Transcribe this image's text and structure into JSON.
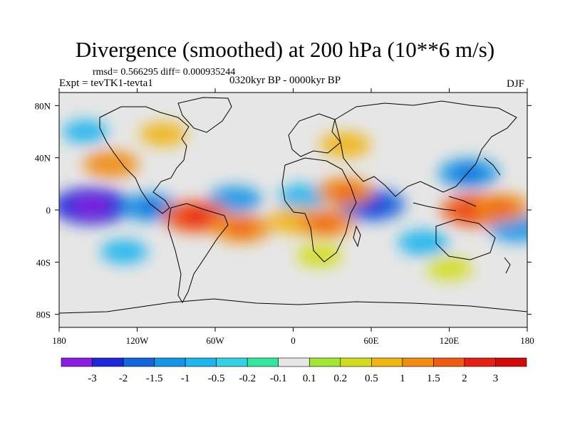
{
  "figure": {
    "title": "Divergence (smoothed) at 200 hPa (10**6 m/s)",
    "stats": "rmsd= 0.566295 diff= 0.000935244",
    "experiment": "Expt = tevTK1-tevta1",
    "period": "0320kyr BP - 0000kyr BP",
    "season": "DJF"
  },
  "chart_data": {
    "type": "heatmap",
    "title": "Divergence (smoothed) at 200 hPa (10**6 m/s)",
    "projection": "cylindrical equidistant",
    "xlabel": "",
    "ylabel": "",
    "xlim": [
      -180,
      180
    ],
    "ylim": [
      -90,
      90
    ],
    "x_ticks": [
      {
        "value": -180,
        "label": "180"
      },
      {
        "value": -120,
        "label": "120W"
      },
      {
        "value": -60,
        "label": "60W"
      },
      {
        "value": 0,
        "label": "0"
      },
      {
        "value": 60,
        "label": "60E"
      },
      {
        "value": 120,
        "label": "120E"
      },
      {
        "value": 180,
        "label": "180"
      }
    ],
    "y_ticks": [
      {
        "value": 80,
        "label": "80N"
      },
      {
        "value": 40,
        "label": "40N"
      },
      {
        "value": 0,
        "label": "0"
      },
      {
        "value": -40,
        "label": "40S"
      },
      {
        "value": -80,
        "label": "80S"
      }
    ],
    "levels": [
      "-3",
      "-2",
      "-1.5",
      "-1",
      "-0.5",
      "-0.2",
      "-0.1",
      "0.1",
      "0.2",
      "0.5",
      "1",
      "1.5",
      "2",
      "3"
    ],
    "level_colors": [
      "#8a1ee0",
      "#1e28d8",
      "#1464dc",
      "#1496e6",
      "#1eb4ee",
      "#32d2e0",
      "#32e6a0",
      "#e6e6e6",
      "#a0e632",
      "#d2dc1e",
      "#f0b414",
      "#f08c14",
      "#f05a14",
      "#e61e14",
      "#d20a0a"
    ],
    "anomalies": [
      {
        "lon": -155,
        "lat": 3,
        "value": -2.4
      },
      {
        "lon": -110,
        "lat": 2,
        "value": -1.2
      },
      {
        "lon": -45,
        "lat": 8,
        "value": -1.0
      },
      {
        "lon": 8,
        "lat": 10,
        "value": -0.8
      },
      {
        "lon": 60,
        "lat": 4,
        "value": -1.8
      },
      {
        "lon": 135,
        "lat": 28,
        "value": -1.4
      },
      {
        "lon": 172,
        "lat": -14,
        "value": -1.1
      },
      {
        "lon": 100,
        "lat": -25,
        "value": -0.8
      },
      {
        "lon": -140,
        "lat": 35,
        "value": 1.1
      },
      {
        "lon": -75,
        "lat": -5,
        "value": 1.8
      },
      {
        "lon": -40,
        "lat": -14,
        "value": 1.3
      },
      {
        "lon": 2,
        "lat": -8,
        "value": 1.0
      },
      {
        "lon": 25,
        "lat": -10,
        "value": 1.2
      },
      {
        "lon": 40,
        "lat": 14,
        "value": 1.2
      },
      {
        "lon": 140,
        "lat": 0,
        "value": 1.9
      },
      {
        "lon": 160,
        "lat": 2,
        "value": 1.2
      },
      {
        "lon": 40,
        "lat": 50,
        "value": 0.8
      },
      {
        "lon": -100,
        "lat": 58,
        "value": 0.6
      },
      {
        "lon": -160,
        "lat": 60,
        "value": -0.5
      },
      {
        "lon": 120,
        "lat": -45,
        "value": 0.5
      },
      {
        "lon": -130,
        "lat": -32,
        "value": -0.6
      },
      {
        "lon": 20,
        "lat": -35,
        "value": 0.5
      }
    ]
  }
}
